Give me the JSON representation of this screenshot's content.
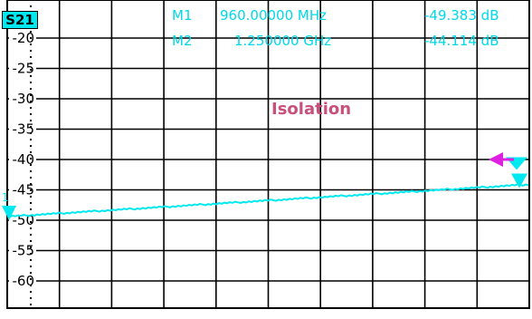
{
  "chart_data": {
    "type": "line",
    "trace_label": "S21",
    "title": "Isolation",
    "ylim": [
      -68,
      -18
    ],
    "y_ticks": [
      -20,
      -25,
      -30,
      -35,
      -40,
      -45,
      -50,
      -55,
      -60
    ],
    "y_tick_labels": [
      "-20",
      "-25",
      "-30",
      "-35",
      "-40",
      "-45",
      "-50",
      "-55",
      "-60"
    ],
    "grid": true,
    "series": [
      {
        "values_db": [
          -49.4,
          -44.1
        ],
        "color": "#00e8f0"
      }
    ],
    "markers": [
      {
        "id": "M1",
        "freq": "960.00000 MHz",
        "value": "-49.383 dB"
      },
      {
        "id": "M2",
        "freq": "1.250000 GHz",
        "value": "-44.114 dB"
      }
    ],
    "colors": {
      "trace": "#00e8f0",
      "title": "#c8507a",
      "ref_marker": "#e020e0",
      "grid": "#000000"
    }
  }
}
